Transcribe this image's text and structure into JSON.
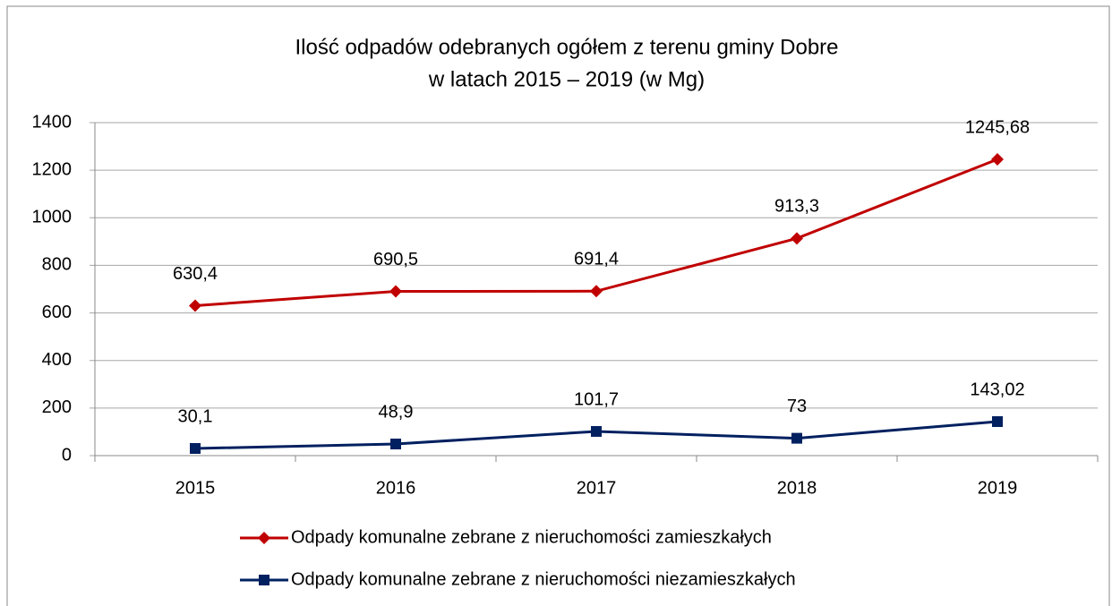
{
  "chart_data": {
    "type": "line",
    "title": [
      "Ilość odpadów odebranych ogółem z terenu gminy Dobre",
      "w latach 2015 – 2019 (w Mg)"
    ],
    "categories": [
      "2015",
      "2016",
      "2017",
      "2018",
      "2019"
    ],
    "series": [
      {
        "name": "Odpady komunalne zebrane z nieruchomości zamieszkałych",
        "color": "#c00000",
        "marker": "diamond",
        "values": [
          630.4,
          690.5,
          691.4,
          913.3,
          1245.68
        ],
        "value_labels": [
          "630,4",
          "690,5",
          "691,4",
          "913,3",
          "1245,68"
        ]
      },
      {
        "name": "Odpady komunalne zebrane z nieruchomości niezamieszkałych",
        "color": "#002060",
        "marker": "square",
        "values": [
          30.1,
          48.9,
          101.7,
          73,
          143.02
        ],
        "value_labels": [
          "30,1",
          "48,9",
          "101,7",
          "73",
          "143,02"
        ]
      }
    ],
    "ylim": [
      0,
      1400
    ],
    "yticks": [
      0,
      200,
      400,
      600,
      800,
      1000,
      1200,
      1400
    ],
    "grid": true,
    "legend": "bottom"
  }
}
